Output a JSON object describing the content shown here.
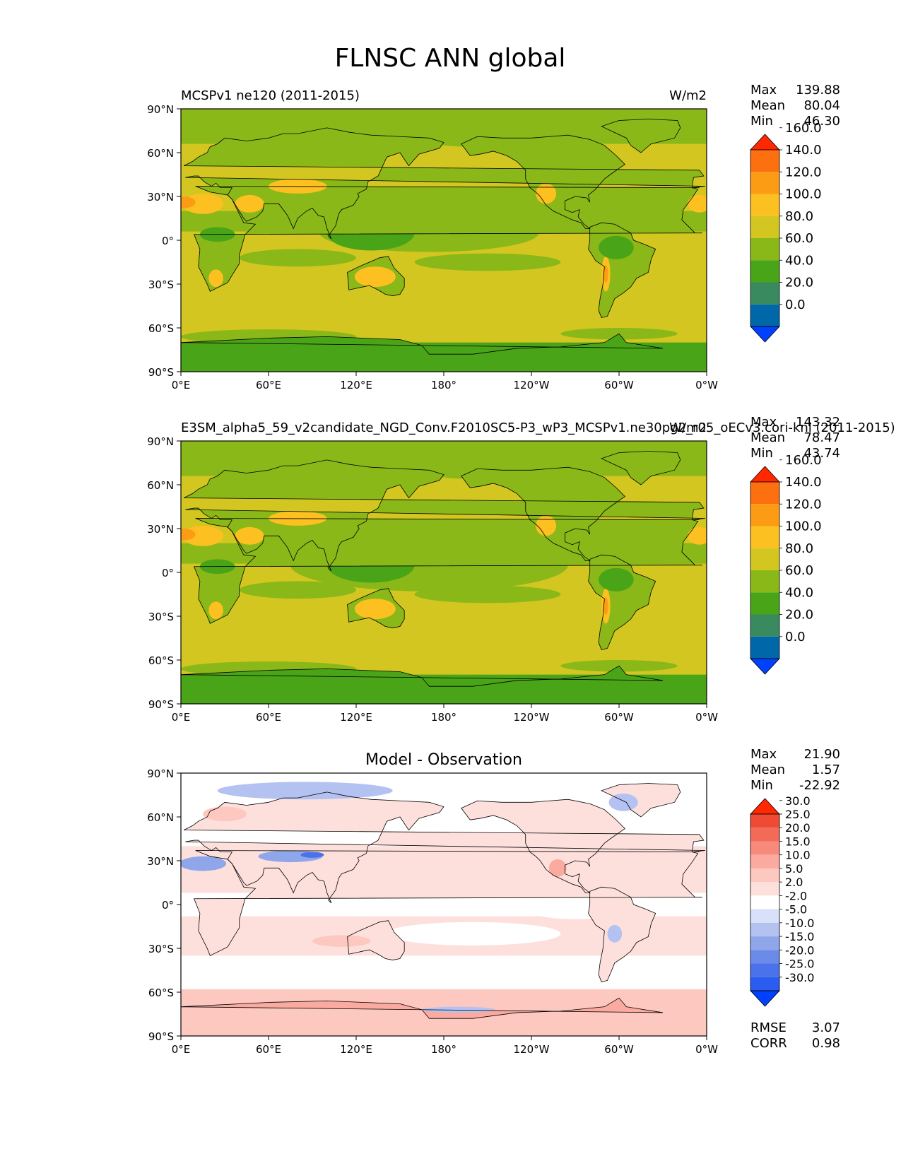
{
  "figure": {
    "title": "FLNSC ANN global"
  },
  "axes": {
    "lat_ticks": [
      "90°N",
      "60°N",
      "30°N",
      "0°",
      "30°S",
      "60°S",
      "90°S"
    ],
    "lon_ticks": [
      "0°E",
      "60°E",
      "120°E",
      "180°",
      "120°W",
      "60°W",
      "0°W"
    ]
  },
  "colors": {
    "main_levels": [
      "#0040ff",
      "#0068a8",
      "#3a8a60",
      "#4aa418",
      "#8ab818",
      "#d4c620",
      "#fcc020",
      "#fc9c14",
      "#fc7010",
      "#ff2800"
    ],
    "diff_levels": [
      "#0040ff",
      "#2a5cf0",
      "#4a72ea",
      "#6c8ae8",
      "#90a6ea",
      "#b4c2f2",
      "#d8e0fa",
      "#ffffff",
      "#fde0dc",
      "#fcc8c0",
      "#fbaaa0",
      "#f88a7c",
      "#f46a58",
      "#ee4a34",
      "#ff2800"
    ]
  },
  "chart_data": [
    {
      "type": "heatmap",
      "id": "model",
      "title_left": "MCSPv1 ne120 (2011-2015)",
      "title_right": "W/m2",
      "title_center": "",
      "stats": {
        "max_label": "Max",
        "max": "139.88",
        "mean_label": "Mean",
        "mean": "80.04",
        "min_label": "Min",
        "min": "46.30"
      },
      "colorbar": {
        "levels": [
          "0.0",
          "20.0",
          "40.0",
          "60.0",
          "80.0",
          "100.0",
          "120.0",
          "140.0",
          "160.0"
        ],
        "extend": "both"
      },
      "x_range": [
        0,
        360
      ],
      "y_range": [
        -90,
        90
      ]
    },
    {
      "type": "heatmap",
      "id": "reference",
      "title_left": "E3SM_alpha5_59_v2candidate_NGD_Conv.F2010SC5-P3_wP3_MCSPv1.ne30pg2_r05_oECv3.cori-knl (2011-2015)",
      "title_right": "W/m2",
      "title_center": "",
      "stats": {
        "max_label": "Max",
        "max": "143.32",
        "mean_label": "Mean",
        "mean": "78.47",
        "min_label": "Min",
        "min": "43.74"
      },
      "colorbar": {
        "levels": [
          "0.0",
          "20.0",
          "40.0",
          "60.0",
          "80.0",
          "100.0",
          "120.0",
          "140.0",
          "160.0"
        ],
        "extend": "both"
      },
      "x_range": [
        0,
        360
      ],
      "y_range": [
        -90,
        90
      ]
    },
    {
      "type": "heatmap",
      "id": "difference",
      "title_left": "",
      "title_right": "",
      "title_center": "Model - Observation",
      "stats": {
        "max_label": "Max",
        "max": "21.90",
        "mean_label": "Mean",
        "mean": "1.57",
        "min_label": "Min",
        "min": "-22.92"
      },
      "colorbar": {
        "levels": [
          "-30.0",
          "-25.0",
          "-20.0",
          "-15.0",
          "-10.0",
          "-5.0",
          "-2.0",
          "2.0",
          "5.0",
          "10.0",
          "15.0",
          "20.0",
          "25.0",
          "30.0"
        ],
        "extend": "both"
      },
      "metrics": {
        "rmse_label": "RMSE",
        "rmse": "3.07",
        "corr_label": "CORR",
        "corr": "0.98"
      },
      "x_range": [
        0,
        360
      ],
      "y_range": [
        -90,
        90
      ]
    }
  ]
}
